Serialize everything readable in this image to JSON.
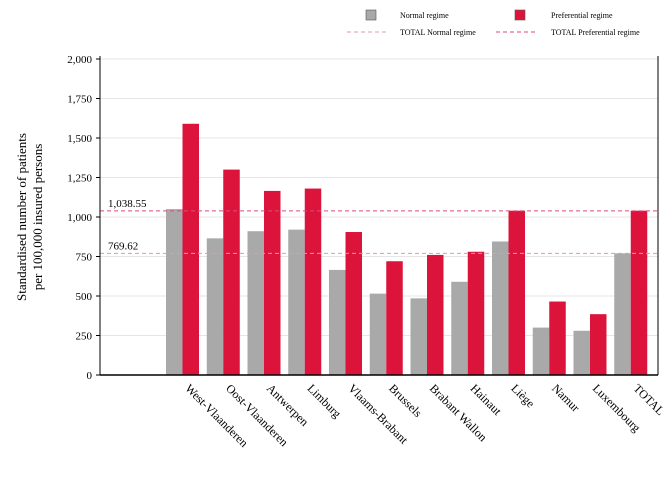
{
  "chart_data": {
    "type": "bar",
    "categories": [
      "West-Vlaanderen",
      "Oost-Vlaanderen",
      "Antwerpen",
      "Limburg",
      "Vlaams-Brabant",
      "Brussels",
      "Brabant Wallon",
      "Hainaut",
      "Liège",
      "Namur",
      "Luxembourg",
      "TOTAL"
    ],
    "series": [
      {
        "name": "Normal regime",
        "color": "#a9a9a9",
        "values": [
          1050,
          865,
          910,
          920,
          665,
          515,
          485,
          590,
          845,
          300,
          280,
          770
        ]
      },
      {
        "name": "Preferential regime",
        "color": "#dc143c",
        "values": [
          1590,
          1300,
          1165,
          1180,
          905,
          720,
          760,
          780,
          1040,
          465,
          385,
          1040
        ]
      }
    ],
    "reference_lines": [
      {
        "name": "TOTAL Normal regime",
        "value": 769.62,
        "label": "769.62",
        "color": "#dc9ab0",
        "style": "dashed"
      },
      {
        "name": "TOTAL Preferential regime",
        "value": 1038.55,
        "label": "1,038.55",
        "color": "#dc4a7a",
        "style": "dashed"
      }
    ],
    "ylabel": "Standardised number of patients per 100,000 insured persons",
    "ylabel_lines": [
      "Standardised number of patients",
      "per 100,000 insured persons"
    ],
    "xlabel": "",
    "ylim": [
      0,
      2000
    ],
    "yticks": [
      0,
      250,
      500,
      750,
      1000,
      1250,
      1500,
      1750,
      2000
    ],
    "ytick_labels": [
      "0",
      "250",
      "500",
      "750",
      "1,000",
      "1,250",
      "1,500",
      "1,750",
      "2,000"
    ],
    "grid": true,
    "legend_position": "top"
  }
}
